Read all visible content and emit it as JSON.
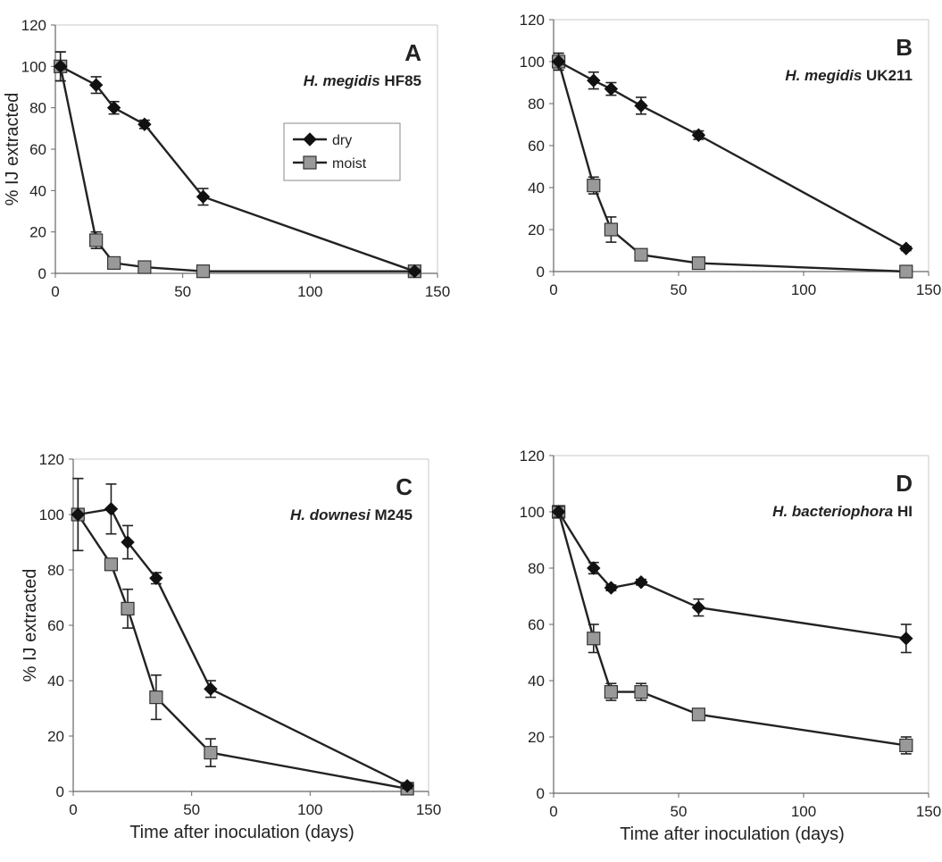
{
  "chart_data": [
    {
      "type": "line",
      "panel": "A",
      "title_species": "H. megidis",
      "title_strain": "HF85",
      "xlabel": "",
      "ylabel": "% IJ  extracted",
      "xlim": [
        0,
        150
      ],
      "ylim": [
        0,
        120
      ],
      "xticks": [
        0,
        50,
        100,
        150
      ],
      "yticks": [
        0,
        20,
        40,
        60,
        80,
        100,
        120
      ],
      "legend": {
        "placement": "top-center",
        "entries": [
          "dry",
          "moist"
        ]
      },
      "series": [
        {
          "name": "dry",
          "color": "#111111",
          "marker": "diamond",
          "x": [
            2,
            16,
            23,
            35,
            58,
            141
          ],
          "y": [
            100,
            91,
            80,
            72,
            37,
            1
          ],
          "err": [
            7,
            4,
            3,
            2,
            4,
            1
          ]
        },
        {
          "name": "moist",
          "color": "#999999",
          "marker": "square",
          "x": [
            2,
            16,
            23,
            35,
            58,
            141
          ],
          "y": [
            100,
            16,
            5,
            3,
            1,
            1
          ],
          "err": [
            7,
            4,
            1,
            1,
            0,
            0
          ]
        }
      ]
    },
    {
      "type": "line",
      "panel": "B",
      "title_species": "H. megidis",
      "title_strain": "UK211",
      "xlabel": "",
      "ylabel": "",
      "xlim": [
        0,
        150
      ],
      "ylim": [
        0,
        120
      ],
      "xticks": [
        0,
        50,
        100,
        150
      ],
      "yticks": [
        0,
        20,
        40,
        60,
        80,
        100,
        120
      ],
      "series": [
        {
          "name": "dry",
          "color": "#111111",
          "marker": "diamond",
          "x": [
            2,
            16,
            23,
            35,
            58,
            141
          ],
          "y": [
            100,
            91,
            87,
            79,
            65,
            11
          ],
          "err": [
            4,
            4,
            3,
            4,
            2,
            1
          ]
        },
        {
          "name": "moist",
          "color": "#999999",
          "marker": "square",
          "x": [
            2,
            16,
            23,
            35,
            58,
            141
          ],
          "y": [
            100,
            41,
            20,
            8,
            4,
            0
          ],
          "err": [
            4,
            4,
            6,
            1,
            1,
            0
          ]
        }
      ]
    },
    {
      "type": "line",
      "panel": "C",
      "title_species": "H. downesi",
      "title_strain": "M245",
      "xlabel": "Time after inoculation (days)",
      "ylabel": "% IJ  extracted",
      "xlim": [
        0,
        150
      ],
      "ylim": [
        0,
        120
      ],
      "xticks": [
        0,
        50,
        100,
        150
      ],
      "yticks": [
        0,
        20,
        40,
        60,
        80,
        100,
        120
      ],
      "series": [
        {
          "name": "dry",
          "color": "#111111",
          "marker": "diamond",
          "x": [
            2,
            16,
            23,
            35,
            58,
            141
          ],
          "y": [
            100,
            102,
            90,
            77,
            37,
            2
          ],
          "err": [
            13,
            9,
            6,
            2,
            3,
            1
          ]
        },
        {
          "name": "moist",
          "color": "#999999",
          "marker": "square",
          "x": [
            2,
            16,
            23,
            35,
            58,
            141
          ],
          "y": [
            100,
            82,
            66,
            34,
            14,
            1
          ],
          "err": [
            13,
            1,
            7,
            8,
            5,
            0
          ]
        }
      ]
    },
    {
      "type": "line",
      "panel": "D",
      "title_species": "H. bacteriophora",
      "title_strain": "HI",
      "xlabel": "Time after inoculation (days)",
      "ylabel": "",
      "xlim": [
        0,
        150
      ],
      "ylim": [
        0,
        120
      ],
      "xticks": [
        0,
        50,
        100,
        150
      ],
      "yticks": [
        0,
        20,
        40,
        60,
        80,
        100,
        120
      ],
      "series": [
        {
          "name": "dry",
          "color": "#111111",
          "marker": "diamond",
          "x": [
            2,
            16,
            23,
            35,
            58,
            141
          ],
          "y": [
            100,
            80,
            73,
            75,
            66,
            55
          ],
          "err": [
            2,
            2,
            1,
            1,
            3,
            5
          ]
        },
        {
          "name": "moist",
          "color": "#999999",
          "marker": "square",
          "x": [
            2,
            16,
            23,
            35,
            58,
            141
          ],
          "y": [
            100,
            55,
            36,
            36,
            28,
            17
          ],
          "err": [
            2,
            5,
            3,
            3,
            1,
            3
          ]
        }
      ]
    }
  ]
}
